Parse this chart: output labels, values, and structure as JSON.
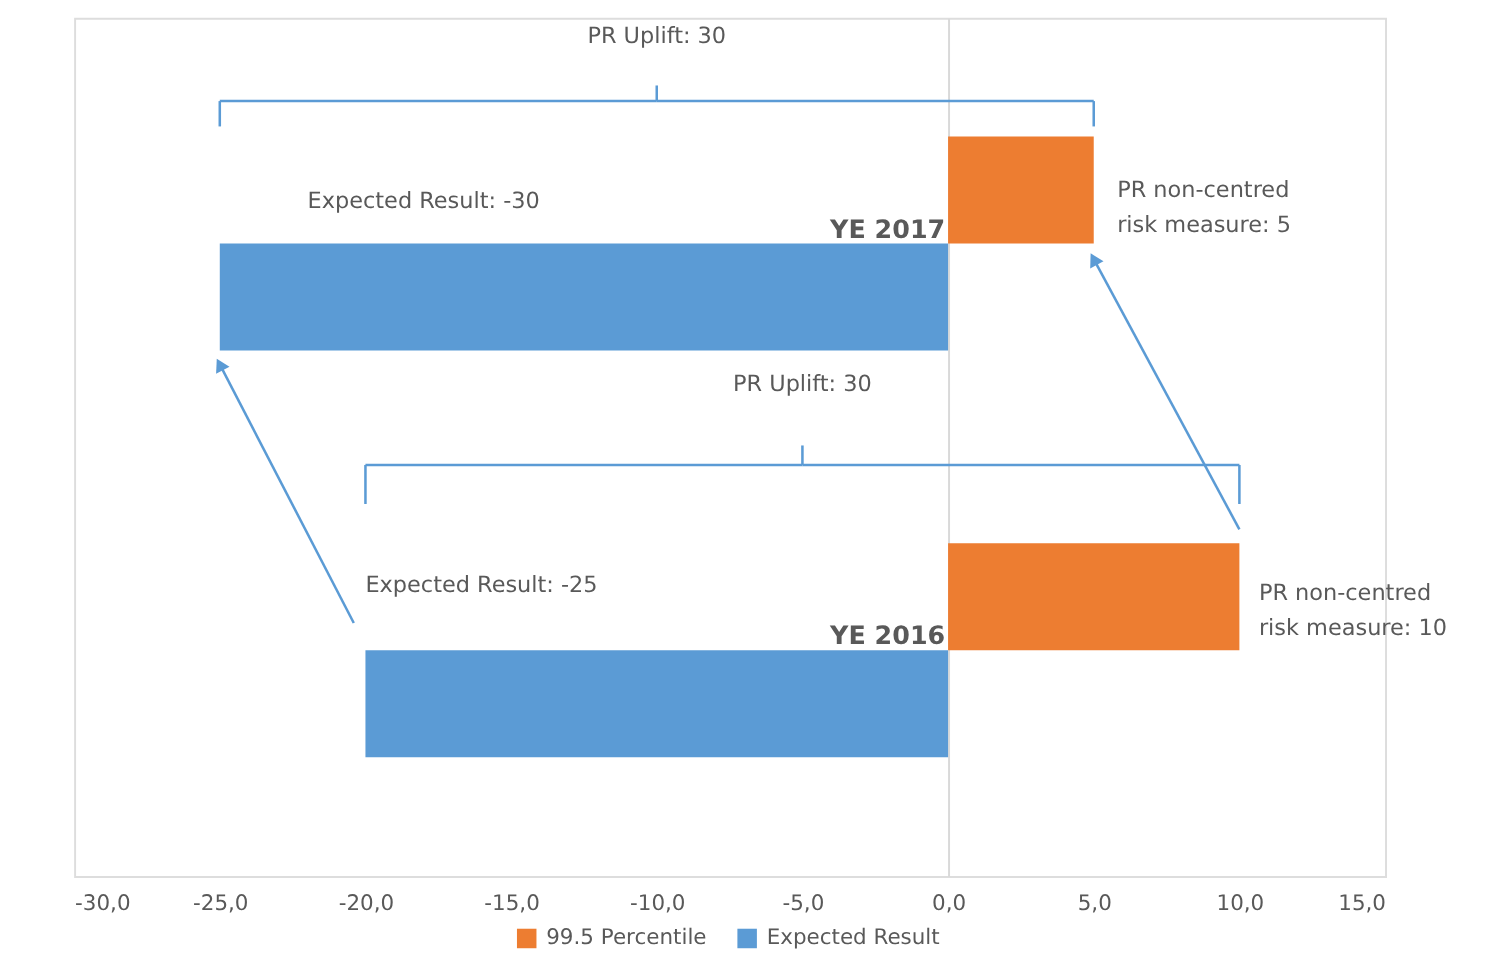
{
  "chart_data": {
    "type": "bar",
    "orientation": "horizontal",
    "categories": [
      "YE 2017",
      "YE 2016"
    ],
    "series": [
      {
        "name": "99.5 Percentile",
        "color": "#ed7d31",
        "values": [
          5,
          10
        ]
      },
      {
        "name": "Expected Result",
        "color": "#5b9bd5",
        "values": [
          -25,
          -20
        ]
      }
    ],
    "xlim": [
      -30,
      15
    ],
    "xticks": [
      {
        "value": -30,
        "label": "-30,0"
      },
      {
        "value": -25,
        "label": "-25,0"
      },
      {
        "value": -20,
        "label": "-20,0"
      },
      {
        "value": -15,
        "label": "-15,0"
      },
      {
        "value": -10,
        "label": "-10,0"
      },
      {
        "value": -5,
        "label": "-5,0"
      },
      {
        "value": 0,
        "label": "0,0"
      },
      {
        "value": 5,
        "label": "5,0"
      },
      {
        "value": 10,
        "label": "10,0"
      },
      {
        "value": 15,
        "label": "15,0"
      }
    ],
    "legend": "bottom",
    "annotations": [
      "PR Uplift: 30",
      "Expected Result: -30",
      "PR non-centred risk measure: 5",
      "PR Uplift: 30",
      "Expected Result: -25",
      "PR non-centred risk measure: 10"
    ]
  }
}
